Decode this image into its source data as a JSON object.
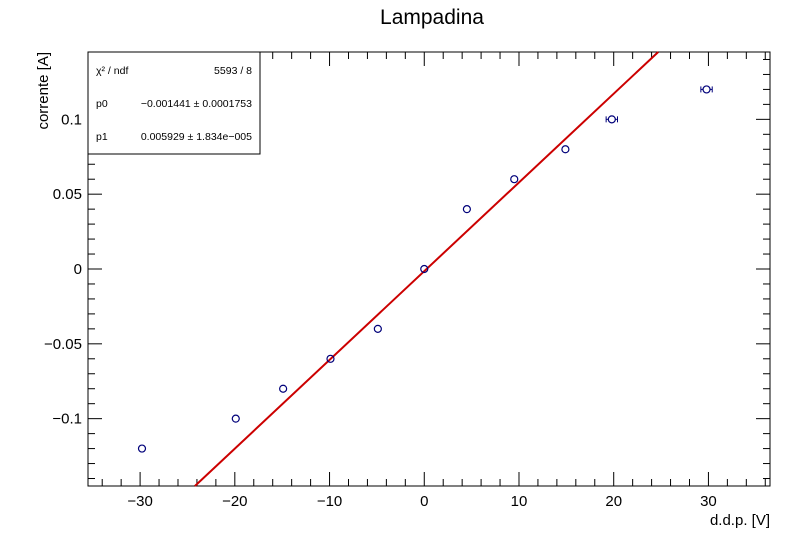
{
  "chart_data": {
    "type": "scatter",
    "title": "Lampadina",
    "xlabel": "d.d.p. [V]",
    "ylabel": "corrente [A]",
    "xlim": [
      -35.5,
      36.5
    ],
    "ylim": [
      -0.145,
      0.145
    ],
    "x_ticks": [
      {
        "value": -30,
        "label": "−30"
      },
      {
        "value": -20,
        "label": "−20"
      },
      {
        "value": -10,
        "label": "−10"
      },
      {
        "value": 0,
        "label": "0"
      },
      {
        "value": 10,
        "label": "10"
      },
      {
        "value": 20,
        "label": "20"
      },
      {
        "value": 30,
        "label": "30"
      }
    ],
    "y_ticks": [
      {
        "value": -0.1,
        "label": "−0.1"
      },
      {
        "value": -0.05,
        "label": "−0.05"
      },
      {
        "value": 0,
        "label": "0"
      },
      {
        "value": 0.05,
        "label": "0.05"
      },
      {
        "value": 0.1,
        "label": "0.1"
      }
    ],
    "points": [
      {
        "x": -29.8,
        "y": -0.12,
        "xerr": 0.1
      },
      {
        "x": -19.9,
        "y": -0.1,
        "xerr": 0.1
      },
      {
        "x": -14.9,
        "y": -0.08,
        "xerr": 0.1
      },
      {
        "x": -9.9,
        "y": -0.06,
        "xerr": 0.1
      },
      {
        "x": -4.9,
        "y": -0.04,
        "xerr": 0.1
      },
      {
        "x": 0.0,
        "y": 0.0,
        "xerr": 0.1
      },
      {
        "x": 4.5,
        "y": 0.04,
        "xerr": 0.1
      },
      {
        "x": 9.5,
        "y": 0.06,
        "xerr": 0.1
      },
      {
        "x": 14.9,
        "y": 0.08,
        "xerr": 0.1
      },
      {
        "x": 19.8,
        "y": 0.1,
        "xerr": 0.6
      },
      {
        "x": 29.8,
        "y": 0.12,
        "xerr": 0.6
      }
    ],
    "fit": {
      "p0": -0.001441,
      "p1": 0.005929,
      "color": "#cc0000"
    },
    "marker_color": "#00007a",
    "grid": false
  },
  "stats": {
    "chi2_label": "χ² / ndf",
    "chi2_value": "5593 / 8",
    "p0_label": "p0",
    "p0_value": "−0.001441 ± 0.0001753",
    "p1_label": "p1",
    "p1_value": "0.005929 ± 1.834e−005"
  }
}
